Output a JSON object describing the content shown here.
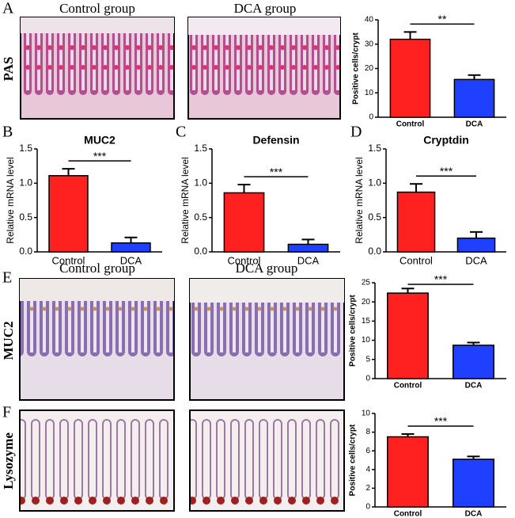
{
  "panels": {
    "letters": [
      "A",
      "B",
      "C",
      "D",
      "E",
      "F"
    ],
    "group_labels": [
      "Control group",
      "DCA group",
      "Control group",
      "DCA group"
    ],
    "stain_labels": [
      "PAS",
      "MUC2",
      "Lysozyme"
    ]
  },
  "chart_data": [
    {
      "type": "bar",
      "ylabel": "Positive cells/crypt",
      "categories": [
        "Control",
        "DCA"
      ],
      "values": [
        32,
        15.5
      ],
      "errors": [
        3,
        1.8
      ],
      "colors": [
        "#ff2020",
        "#2040ff"
      ],
      "ylim": [
        0,
        40
      ],
      "yticks": [
        0,
        10,
        20,
        30,
        40
      ],
      "annotation": "**"
    },
    {
      "type": "bar",
      "title": "MUC2",
      "ylabel": "Relative mRNA level",
      "categories": [
        "Control",
        "DCA"
      ],
      "values": [
        1.11,
        0.13
      ],
      "errors": [
        0.1,
        0.08
      ],
      "colors": [
        "#ff2020",
        "#2040ff"
      ],
      "ylim": [
        0,
        1.5
      ],
      "yticks": [
        {
          "value": 0,
          "label": "0.0"
        },
        0.5,
        {
          "value": 1,
          "label": "1.0"
        },
        1.5
      ],
      "annotation": "***"
    },
    {
      "type": "bar",
      "title": "Defensin",
      "ylabel": "Relative mRNA level",
      "categories": [
        "Control",
        "DCA"
      ],
      "values": [
        0.86,
        0.11
      ],
      "errors": [
        0.12,
        0.07
      ],
      "colors": [
        "#ff2020",
        "#2040ff"
      ],
      "ylim": [
        0,
        1.5
      ],
      "yticks": [
        {
          "value": 0,
          "label": "0.0"
        },
        0.5,
        {
          "value": 1,
          "label": "1.0"
        },
        1.5
      ],
      "annotation": "***"
    },
    {
      "type": "bar",
      "title": "Cryptdin",
      "ylabel": "Relative mRNA level",
      "categories": [
        "Control",
        "DCA"
      ],
      "values": [
        0.87,
        0.2
      ],
      "errors": [
        0.12,
        0.09
      ],
      "colors": [
        "#ff2020",
        "#2040ff"
      ],
      "ylim": [
        0,
        1.5
      ],
      "yticks": [
        {
          "value": 0,
          "label": "0.0"
        },
        0.5,
        {
          "value": 1,
          "label": "1.0"
        },
        1.5
      ],
      "annotation": "***"
    },
    {
      "type": "bar",
      "ylabel": "Positive cells/crypt",
      "categories": [
        "Control",
        "DCA"
      ],
      "values": [
        22.3,
        8.7
      ],
      "errors": [
        1.2,
        0.7
      ],
      "colors": [
        "#ff2020",
        "#2040ff"
      ],
      "ylim": [
        0,
        25
      ],
      "yticks": [
        0,
        5,
        10,
        15,
        20,
        25
      ],
      "annotation": "***"
    },
    {
      "type": "bar",
      "ylabel": "Positive cells/crypt",
      "categories": [
        "Control",
        "DCA"
      ],
      "values": [
        7.5,
        5.1
      ],
      "errors": [
        0.3,
        0.3
      ],
      "colors": [
        "#ff2020",
        "#2040ff"
      ],
      "ylim": [
        0,
        10
      ],
      "yticks": [
        0,
        2,
        4,
        6,
        8,
        10
      ],
      "annotation": "***"
    }
  ]
}
